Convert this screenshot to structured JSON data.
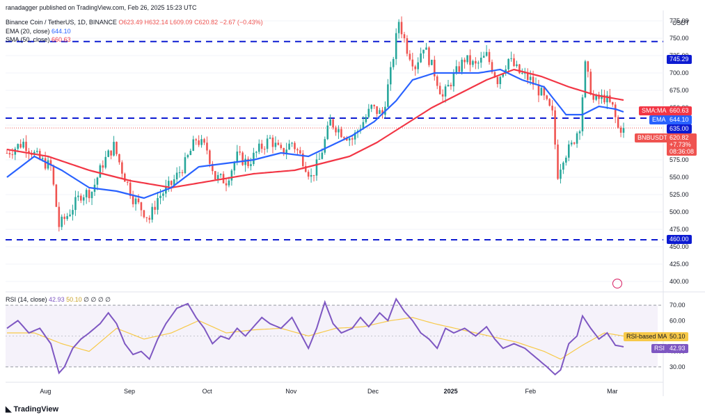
{
  "header": {
    "publisher": "ranadagger published on TradingView.com, Feb 26, 2025 15:23 UTC",
    "symbol": "Binance Coin / TetherUS, 1D, BINANCE",
    "ohlc": {
      "o": "O623.49",
      "h": "H632.14",
      "l": "L609.09",
      "c": "C620.82",
      "chg": "−2.67 (−0.43%)"
    },
    "ema_label": "EMA (20, close)",
    "ema_value": "644.10",
    "sma_label": "SMA (50, close)",
    "sma_value": "660.63",
    "rsi_label": "RSI (14, close)",
    "rsi_value": "42.93",
    "rsi_ma_value": "50.10",
    "rsi_extra": "∅ ∅ ∅ ∅"
  },
  "axis": {
    "currency": "USDT",
    "price_ticks": [
      "775.00",
      "750.00",
      "725.00",
      "700.00",
      "675.00",
      "650.00",
      "625.00",
      "600.00",
      "575.00",
      "550.00",
      "525.00",
      "500.00",
      "475.00",
      "450.00",
      "425.00",
      "400.00"
    ],
    "rsi_ticks": [
      "70.00",
      "60.00",
      "50.00",
      "40.00",
      "30.00"
    ],
    "x_labels": [
      "Aug",
      "Sep",
      "Oct",
      "Nov",
      "Dec",
      "2025",
      "Feb",
      "Mar"
    ]
  },
  "tags": {
    "resistance": "745.29",
    "sma_name": "SMA:MA",
    "sma": "660.63",
    "mid": "635.00",
    "ema_name": "EMA",
    "ema": "644.10",
    "price_name": "BNBUSDT",
    "price": "620.82",
    "price_chg": "+7.73%",
    "countdown": "08:36:08",
    "support": "460.00",
    "rsi_ma_name": "RSI-based MA",
    "rsi_ma": "50.10",
    "rsi_name": "RSI",
    "rsi": "42.93"
  },
  "brand": "TradingView",
  "colors": {
    "up": "#26a69a",
    "down": "#ef5350",
    "ema": "#2962ff",
    "sma": "#f23645",
    "rsi": "#7e57c2",
    "rsima": "#f7c948",
    "level": "#0d1bd1"
  },
  "chart_data": {
    "type": "candlestick",
    "symbol": "BNBUSDT",
    "timeframe": "1D",
    "ylim": [
      390,
      790
    ],
    "horizontal_levels": [
      745.29,
      635.0,
      460.0
    ],
    "month_labels": [
      "Aug",
      "Sep",
      "Oct",
      "Nov",
      "Dec",
      "2025",
      "Feb",
      "Mar"
    ],
    "close_anchors": [
      [
        0,
        585
      ],
      [
        6,
        600
      ],
      [
        12,
        575
      ],
      [
        16,
        565
      ],
      [
        19,
        480
      ],
      [
        22,
        495
      ],
      [
        27,
        525
      ],
      [
        31,
        530
      ],
      [
        35,
        570
      ],
      [
        39,
        595
      ],
      [
        42,
        560
      ],
      [
        46,
        520
      ],
      [
        49,
        505
      ],
      [
        52,
        490
      ],
      [
        55,
        520
      ],
      [
        60,
        540
      ],
      [
        65,
        570
      ],
      [
        69,
        605
      ],
      [
        73,
        590
      ],
      [
        76,
        550
      ],
      [
        80,
        545
      ],
      [
        84,
        580
      ],
      [
        88,
        570
      ],
      [
        92,
        590
      ],
      [
        96,
        605
      ],
      [
        100,
        585
      ],
      [
        104,
        600
      ],
      [
        108,
        575
      ],
      [
        111,
        550
      ],
      [
        114,
        575
      ],
      [
        118,
        630
      ],
      [
        122,
        615
      ],
      [
        126,
        605
      ],
      [
        130,
        630
      ],
      [
        133,
        650
      ],
      [
        137,
        640
      ],
      [
        140,
        700
      ],
      [
        143,
        775
      ],
      [
        146,
        735
      ],
      [
        149,
        710
      ],
      [
        152,
        740
      ],
      [
        156,
        700
      ],
      [
        159,
        665
      ],
      [
        163,
        695
      ],
      [
        167,
        720
      ],
      [
        171,
        710
      ],
      [
        175,
        725
      ],
      [
        179,
        690
      ],
      [
        183,
        720
      ],
      [
        187,
        700
      ],
      [
        191,
        690
      ],
      [
        195,
        670
      ],
      [
        199,
        640
      ],
      [
        201,
        555
      ],
      [
        203,
        580
      ],
      [
        206,
        595
      ],
      [
        209,
        625
      ],
      [
        211,
        710
      ],
      [
        214,
        660
      ],
      [
        218,
        665
      ],
      [
        221,
        650
      ],
      [
        223,
        620
      ],
      [
        225,
        621
      ]
    ],
    "ema20": [
      [
        0,
        550
      ],
      [
        10,
        580
      ],
      [
        20,
        560
      ],
      [
        30,
        535
      ],
      [
        40,
        530
      ],
      [
        50,
        520
      ],
      [
        60,
        535
      ],
      [
        70,
        565
      ],
      [
        80,
        570
      ],
      [
        90,
        575
      ],
      [
        100,
        585
      ],
      [
        110,
        580
      ],
      [
        118,
        595
      ],
      [
        126,
        610
      ],
      [
        134,
        630
      ],
      [
        142,
        660
      ],
      [
        148,
        690
      ],
      [
        156,
        700
      ],
      [
        164,
        700
      ],
      [
        172,
        700
      ],
      [
        180,
        705
      ],
      [
        188,
        690
      ],
      [
        196,
        680
      ],
      [
        200,
        660
      ],
      [
        204,
        640
      ],
      [
        210,
        640
      ],
      [
        216,
        652
      ],
      [
        222,
        648
      ],
      [
        225,
        644
      ]
    ],
    "sma50": [
      [
        0,
        590
      ],
      [
        15,
        580
      ],
      [
        30,
        560
      ],
      [
        45,
        545
      ],
      [
        60,
        535
      ],
      [
        75,
        545
      ],
      [
        90,
        555
      ],
      [
        105,
        560
      ],
      [
        115,
        570
      ],
      [
        125,
        580
      ],
      [
        135,
        600
      ],
      [
        145,
        625
      ],
      [
        155,
        650
      ],
      [
        165,
        670
      ],
      [
        175,
        690
      ],
      [
        185,
        705
      ],
      [
        195,
        695
      ],
      [
        205,
        680
      ],
      [
        215,
        668
      ],
      [
        225,
        661
      ]
    ],
    "rsi_ylim": [
      20,
      75
    ],
    "rsi_levels": [
      70,
      30
    ],
    "rsi": [
      [
        0,
        55
      ],
      [
        4,
        60
      ],
      [
        8,
        52
      ],
      [
        12,
        55
      ],
      [
        16,
        45
      ],
      [
        19,
        26
      ],
      [
        21,
        30
      ],
      [
        24,
        42
      ],
      [
        27,
        48
      ],
      [
        30,
        52
      ],
      [
        34,
        58
      ],
      [
        37,
        65
      ],
      [
        40,
        58
      ],
      [
        43,
        45
      ],
      [
        46,
        38
      ],
      [
        49,
        40
      ],
      [
        52,
        35
      ],
      [
        55,
        48
      ],
      [
        58,
        58
      ],
      [
        62,
        68
      ],
      [
        66,
        71
      ],
      [
        69,
        62
      ],
      [
        72,
        55
      ],
      [
        75,
        45
      ],
      [
        78,
        50
      ],
      [
        81,
        48
      ],
      [
        84,
        55
      ],
      [
        87,
        50
      ],
      [
        90,
        56
      ],
      [
        93,
        62
      ],
      [
        96,
        58
      ],
      [
        100,
        55
      ],
      [
        104,
        62
      ],
      [
        107,
        52
      ],
      [
        110,
        42
      ],
      [
        113,
        55
      ],
      [
        116,
        72
      ],
      [
        119,
        58
      ],
      [
        122,
        52
      ],
      [
        126,
        55
      ],
      [
        129,
        62
      ],
      [
        132,
        56
      ],
      [
        136,
        65
      ],
      [
        139,
        60
      ],
      [
        142,
        74
      ],
      [
        145,
        66
      ],
      [
        148,
        60
      ],
      [
        151,
        52
      ],
      [
        154,
        48
      ],
      [
        157,
        42
      ],
      [
        160,
        55
      ],
      [
        163,
        52
      ],
      [
        167,
        55
      ],
      [
        171,
        50
      ],
      [
        175,
        56
      ],
      [
        178,
        48
      ],
      [
        181,
        42
      ],
      [
        185,
        45
      ],
      [
        189,
        42
      ],
      [
        193,
        36
      ],
      [
        197,
        30
      ],
      [
        200,
        25
      ],
      [
        202,
        28
      ],
      [
        205,
        45
      ],
      [
        208,
        50
      ],
      [
        210,
        63
      ],
      [
        213,
        55
      ],
      [
        216,
        48
      ],
      [
        219,
        52
      ],
      [
        222,
        44
      ],
      [
        225,
        43
      ]
    ],
    "rsi_ma": [
      [
        0,
        52
      ],
      [
        10,
        52
      ],
      [
        20,
        45
      ],
      [
        30,
        40
      ],
      [
        40,
        55
      ],
      [
        50,
        48
      ],
      [
        60,
        52
      ],
      [
        70,
        60
      ],
      [
        80,
        52
      ],
      [
        90,
        54
      ],
      [
        100,
        55
      ],
      [
        110,
        50
      ],
      [
        120,
        55
      ],
      [
        130,
        56
      ],
      [
        140,
        60
      ],
      [
        148,
        62
      ],
      [
        156,
        58
      ],
      [
        166,
        54
      ],
      [
        176,
        50
      ],
      [
        186,
        46
      ],
      [
        196,
        40
      ],
      [
        202,
        35
      ],
      [
        210,
        44
      ],
      [
        218,
        52
      ],
      [
        225,
        50
      ]
    ],
    "n_bars": 226
  }
}
